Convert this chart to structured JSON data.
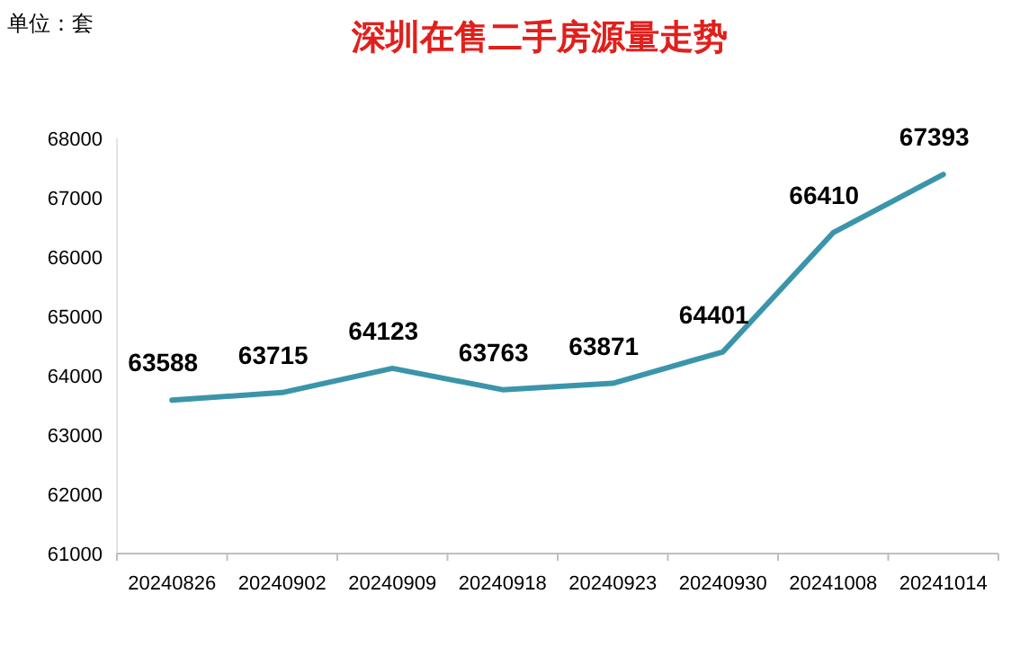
{
  "chart_data": {
    "type": "line",
    "title": "深圳在售二手房源量走势",
    "ylabel": "单位：套",
    "categories": [
      "20240826",
      "20240902",
      "20240909",
      "20240918",
      "20240923",
      "20240930",
      "20241008",
      "20241014"
    ],
    "series": [
      {
        "color": "#3b95aa",
        "values": [
          63588,
          63715,
          64123,
          63763,
          63871,
          64401,
          66410,
          67393
        ]
      }
    ],
    "ylim": [
      61000,
      68000
    ],
    "yticks": [
      61000,
      62000,
      63000,
      64000,
      65000,
      66000,
      67000,
      68000
    ],
    "data_labels": true,
    "grid": false,
    "marker": "none",
    "line_style": "solid"
  }
}
